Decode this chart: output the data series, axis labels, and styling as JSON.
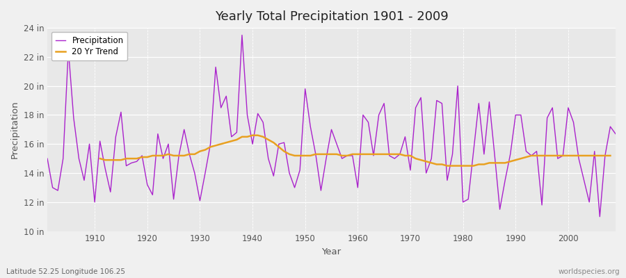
{
  "title": "Yearly Total Precipitation 1901 - 2009",
  "ylabel": "Precipitation",
  "xlabel": "Year",
  "subtitle_left": "Latitude 52.25 Longitude 106.25",
  "subtitle_right": "worldspecies.org",
  "precip_color": "#aa22cc",
  "trend_color": "#e8a020",
  "background_color": "#f0f0f0",
  "plot_bg_color": "#e8e8e8",
  "ylim": [
    10,
    24
  ],
  "yticks": [
    10,
    12,
    14,
    16,
    18,
    20,
    22,
    24
  ],
  "ytick_labels": [
    "10 in",
    "12 in",
    "14 in",
    "16 in",
    "18 in",
    "20 in",
    "22 in",
    "24 in"
  ],
  "years": [
    1901,
    1902,
    1903,
    1904,
    1905,
    1906,
    1907,
    1908,
    1909,
    1910,
    1911,
    1912,
    1913,
    1914,
    1915,
    1916,
    1917,
    1918,
    1919,
    1920,
    1921,
    1922,
    1923,
    1924,
    1925,
    1926,
    1927,
    1928,
    1929,
    1930,
    1931,
    1932,
    1933,
    1934,
    1935,
    1936,
    1937,
    1938,
    1939,
    1940,
    1941,
    1942,
    1943,
    1944,
    1945,
    1946,
    1947,
    1948,
    1949,
    1950,
    1951,
    1952,
    1953,
    1954,
    1955,
    1956,
    1957,
    1958,
    1959,
    1960,
    1961,
    1962,
    1963,
    1964,
    1965,
    1966,
    1967,
    1968,
    1969,
    1970,
    1971,
    1972,
    1973,
    1974,
    1975,
    1976,
    1977,
    1978,
    1979,
    1980,
    1981,
    1982,
    1983,
    1984,
    1985,
    1986,
    1987,
    1988,
    1989,
    1990,
    1991,
    1992,
    1993,
    1994,
    1995,
    1996,
    1997,
    1998,
    1999,
    2000,
    2001,
    2002,
    2003,
    2004,
    2005,
    2006,
    2007,
    2008,
    2009
  ],
  "precip": [
    15.0,
    13.0,
    12.8,
    15.0,
    22.5,
    17.8,
    15.0,
    13.5,
    16.0,
    12.0,
    16.2,
    14.3,
    12.7,
    16.5,
    18.2,
    14.5,
    14.7,
    14.8,
    15.2,
    13.2,
    12.5,
    16.7,
    15.0,
    16.0,
    12.2,
    15.2,
    17.0,
    15.3,
    14.0,
    12.1,
    14.0,
    16.0,
    21.3,
    18.5,
    19.3,
    16.5,
    16.8,
    23.5,
    18.0,
    16.0,
    18.1,
    17.5,
    15.0,
    13.8,
    16.0,
    16.1,
    14.0,
    13.0,
    14.2,
    19.8,
    17.2,
    15.3,
    12.8,
    15.0,
    17.0,
    16.0,
    15.0,
    15.2,
    15.2,
    13.0,
    18.0,
    17.5,
    15.2,
    18.0,
    18.8,
    15.2,
    15.0,
    15.3,
    16.5,
    14.2,
    18.5,
    19.2,
    14.0,
    15.0,
    19.0,
    18.8,
    13.5,
    15.3,
    20.0,
    12.0,
    12.2,
    15.5,
    18.8,
    15.3,
    18.9,
    15.3,
    11.5,
    13.5,
    15.3,
    18.0,
    18.0,
    15.5,
    15.2,
    15.5,
    11.8,
    17.8,
    18.5,
    15.0,
    15.2,
    18.5,
    17.5,
    15.0,
    13.5,
    12.0,
    15.5,
    11.0,
    15.2,
    17.2,
    16.7
  ],
  "trend": [
    null,
    null,
    null,
    null,
    null,
    null,
    null,
    null,
    null,
    null,
    15.0,
    14.9,
    14.9,
    14.9,
    14.9,
    15.0,
    15.0,
    15.0,
    15.1,
    15.1,
    15.2,
    15.2,
    15.2,
    15.3,
    15.2,
    15.2,
    15.2,
    15.3,
    15.3,
    15.5,
    15.6,
    15.8,
    15.9,
    16.0,
    16.1,
    16.2,
    16.3,
    16.5,
    16.5,
    16.6,
    16.6,
    16.5,
    16.3,
    16.1,
    15.8,
    15.5,
    15.3,
    15.2,
    15.2,
    15.2,
    15.2,
    15.3,
    15.3,
    15.3,
    15.3,
    15.3,
    15.2,
    15.2,
    15.3,
    15.3,
    15.3,
    15.3,
    15.3,
    15.3,
    15.3,
    15.3,
    15.3,
    15.3,
    15.2,
    15.2,
    15.0,
    14.9,
    14.8,
    14.7,
    14.6,
    14.6,
    14.5,
    14.5,
    14.5,
    14.5,
    14.5,
    14.5,
    14.6,
    14.6,
    14.7,
    14.7,
    14.7,
    14.7,
    14.8,
    14.9,
    15.0,
    15.1,
    15.2,
    15.2,
    15.2,
    15.2,
    15.2,
    15.2,
    15.2,
    15.2,
    15.2,
    15.2,
    15.2,
    15.2,
    15.2,
    15.2,
    15.2,
    15.2,
    null
  ],
  "xlim": [
    1901,
    2009
  ],
  "xticks": [
    1910,
    1920,
    1930,
    1940,
    1950,
    1960,
    1970,
    1980,
    1990,
    2000
  ],
  "legend_loc": "upper left",
  "precip_linewidth": 1.0,
  "trend_linewidth": 1.8
}
